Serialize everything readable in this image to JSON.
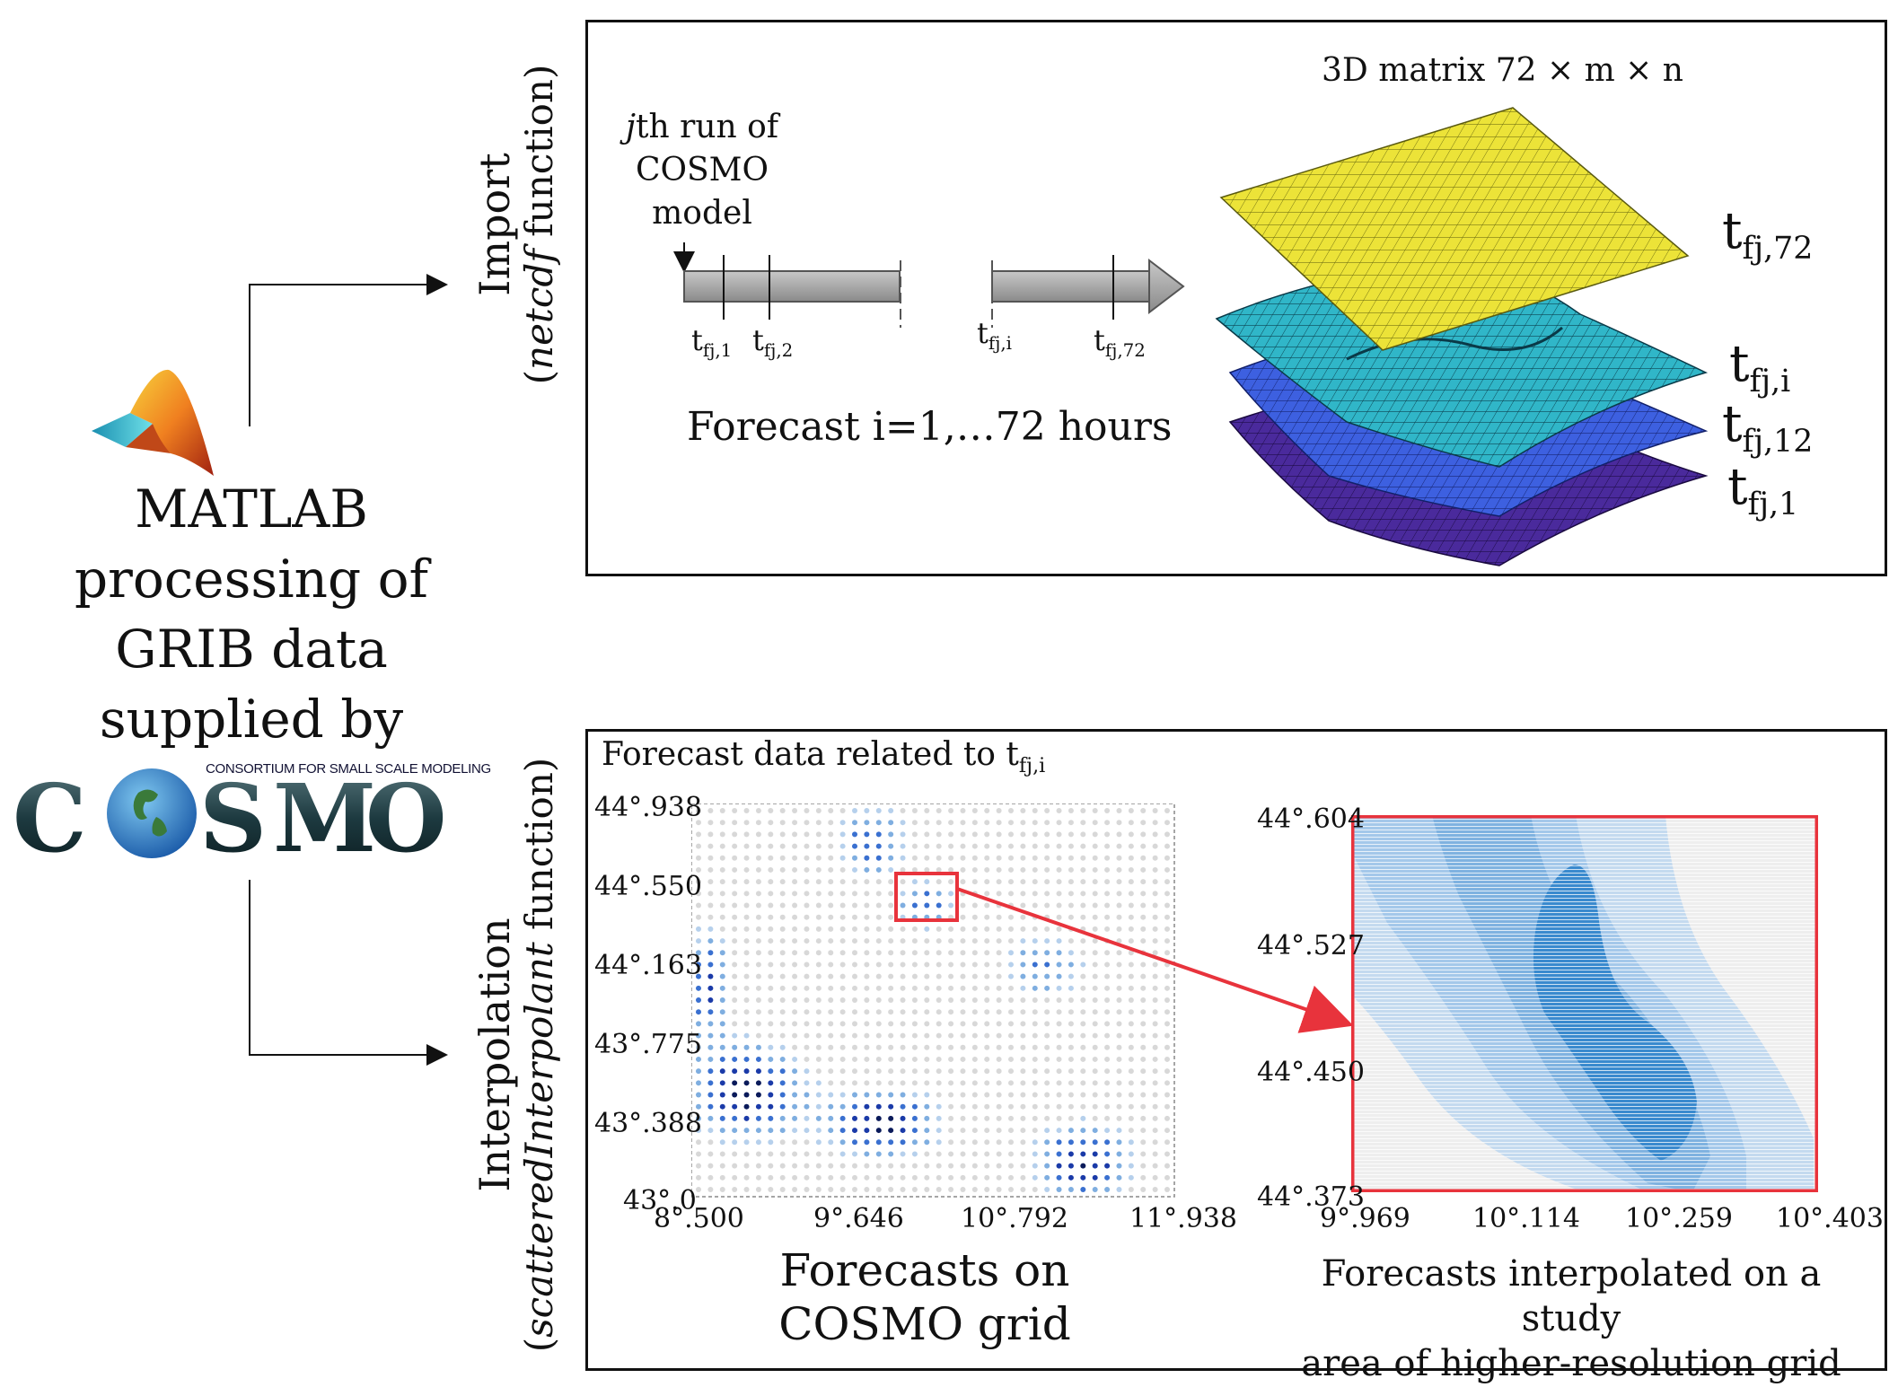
{
  "left": {
    "title_lines": [
      "MATLAB",
      "processing of",
      "GRIB data",
      "supplied by"
    ],
    "cosmo_logo_word": "COSMO",
    "cosmo_logo_tag": "CONSORTIUM FOR SMALL SCALE MODELING"
  },
  "import_label": {
    "line1": "Import",
    "line2_italic": "netcdf",
    "line2_rest": " function)",
    "line2_open": "("
  },
  "interp_label": {
    "line1": "Interpolation",
    "line2_open": "(",
    "line2_italic": "scatteredInterpolant",
    "line2_rest": " function)"
  },
  "top": {
    "run_label_italic": "j",
    "run_label_lines": [
      "th run of",
      "COSMO",
      "model"
    ],
    "tick_labels": [
      {
        "main": "t",
        "sub": "fj,1"
      },
      {
        "main": "t",
        "sub": "fj,2"
      },
      {
        "main": "t",
        "sub": "fj,i"
      },
      {
        "main": "t",
        "sub": "fj,72"
      }
    ],
    "forecast_caption": "Forecast i=1,…72 hours",
    "matrix_title": "3D matrix 72 × m × n",
    "layer_labels": [
      {
        "main": "t",
        "sub": "fj,72",
        "color": "#e8e030"
      },
      {
        "main": "t",
        "sub": "fj,i",
        "color": "#2fb8c8"
      },
      {
        "main": "t",
        "sub": "fj,12",
        "color": "#3f5fd8"
      },
      {
        "main": "t",
        "sub": "fj,1",
        "color": "#4a2a9a"
      }
    ]
  },
  "bottom": {
    "left_chart_title": "Forecast data related to t",
    "left_chart_title_sub": "fj,i",
    "left_y_ticks": [
      "44°.938",
      "44°.550",
      "44°.163",
      "43°.775",
      "43°.388",
      "43°.0"
    ],
    "left_x_ticks": [
      "8°.500",
      "9°.646",
      "10°.792",
      "11°.938"
    ],
    "left_caption": [
      "Forecasts on",
      "COSMO grid"
    ],
    "right_y_ticks": [
      "44°.604",
      "44°.527",
      "44°.450",
      "44°.373"
    ],
    "right_x_ticks": [
      "9°.969",
      "10°.114",
      "10°.259",
      "10°.403"
    ],
    "right_caption": [
      "Forecasts interpolated on a study",
      "area of higher-resolution grid"
    ],
    "highlight_color": "#e8333c"
  }
}
